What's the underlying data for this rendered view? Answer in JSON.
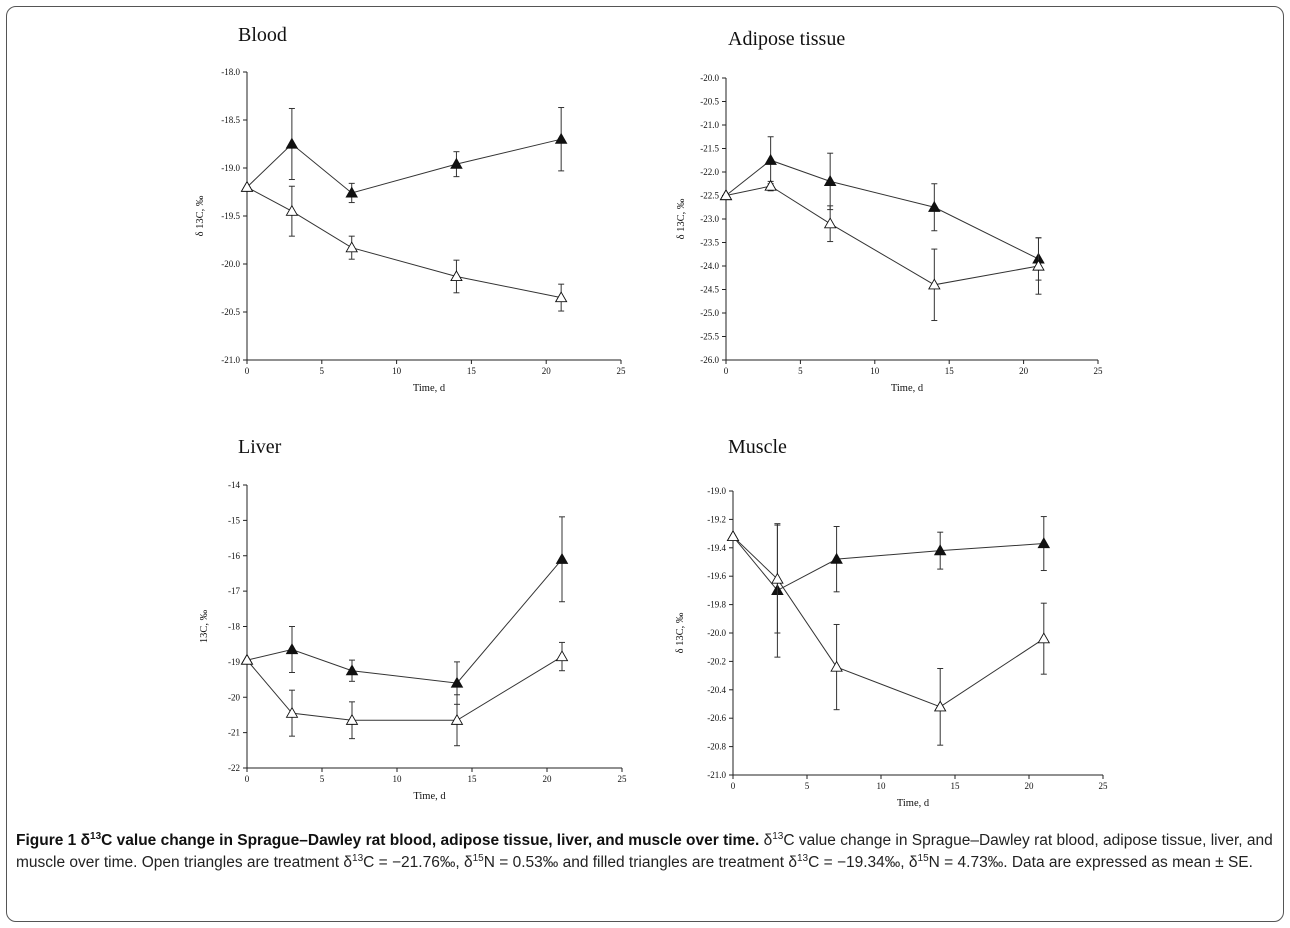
{
  "caption": {
    "label": "Figure 1",
    "title": "δ13C value change in Sprague–Dawley rat blood, adipose tissue, liver, and muscle over time.",
    "body": "δ13C value change in Sprague–Dawley rat blood, adipose tissue, liver, and muscle over time. Open triangles are treatment δ13C = −21.76‰, δ15N = 0.53‰ and filled triangles are treatment δ13C = −19.34‰, δ15N = 4.73‰. Data are expressed as mean ± SE."
  },
  "chart_data": [
    {
      "type": "line",
      "title": "Blood",
      "xlabel": "Time, d",
      "ylabel": "δ 13C, ‰",
      "xlim": [
        0,
        25
      ],
      "ylim": [
        -21.0,
        -18.0
      ],
      "xticks": [
        0,
        5,
        10,
        15,
        20,
        25
      ],
      "yticks": [
        -21.0,
        -20.5,
        -20.0,
        -19.5,
        -19.0,
        -18.5,
        -18.0
      ],
      "ytick_decimals": 1,
      "x": [
        0,
        3,
        7,
        14,
        21
      ],
      "series": [
        {
          "marker": "filled-triangle",
          "values": [
            -19.2,
            -18.75,
            -19.26,
            -18.96,
            -18.7
          ],
          "errors": [
            0.0,
            0.37,
            0.1,
            0.13,
            0.33
          ]
        },
        {
          "marker": "open-triangle",
          "values": [
            -19.2,
            -19.45,
            -19.83,
            -20.13,
            -20.35
          ],
          "errors": [
            0.0,
            0.26,
            0.12,
            0.17,
            0.14
          ]
        }
      ]
    },
    {
      "type": "line",
      "title": "Adipose tissue",
      "xlabel": "Time, d",
      "ylabel": "δ 13C, ‰",
      "xlim": [
        0,
        25
      ],
      "ylim": [
        -26.0,
        -20.0
      ],
      "xticks": [
        0,
        5,
        10,
        15,
        20,
        25
      ],
      "yticks": [
        -26.0,
        -25.5,
        -25.0,
        -24.5,
        -24.0,
        -23.5,
        -23.0,
        -22.5,
        -22.0,
        -21.5,
        -21.0,
        -20.5,
        -20.0
      ],
      "ytick_decimals": 1,
      "x": [
        0,
        3,
        7,
        14,
        21
      ],
      "series": [
        {
          "marker": "filled-triangle",
          "values": [
            -22.5,
            -21.75,
            -22.2,
            -22.75,
            -23.85
          ],
          "errors": [
            0.0,
            0.5,
            0.6,
            0.5,
            0.45
          ]
        },
        {
          "marker": "open-triangle",
          "values": [
            -22.5,
            -22.3,
            -23.1,
            -24.4,
            -24.0
          ],
          "errors": [
            0.0,
            0.1,
            0.38,
            0.76,
            0.6
          ]
        }
      ]
    },
    {
      "type": "line",
      "title": "Liver",
      "xlabel": "Time, d",
      "ylabel": "13C, ‰",
      "xlim": [
        0,
        25
      ],
      "ylim": [
        -22,
        -14
      ],
      "xticks": [
        0,
        5,
        10,
        15,
        20,
        25
      ],
      "yticks": [
        -22,
        -21,
        -20,
        -19,
        -18,
        -17,
        -16,
        -15,
        -14
      ],
      "ytick_decimals": 0,
      "x": [
        0,
        3,
        7,
        14,
        21
      ],
      "series": [
        {
          "marker": "filled-triangle",
          "values": [
            -18.95,
            -18.65,
            -19.25,
            -19.6,
            -16.1
          ],
          "errors": [
            0.0,
            0.65,
            0.3,
            0.6,
            1.2
          ]
        },
        {
          "marker": "open-triangle",
          "values": [
            -18.95,
            -20.45,
            -20.65,
            -20.65,
            -18.85
          ],
          "errors": [
            0.0,
            0.65,
            0.52,
            0.72,
            0.4
          ]
        }
      ]
    },
    {
      "type": "line",
      "title": "Muscle",
      "xlabel": "Time, d",
      "ylabel": "δ 13C, ‰",
      "xlim": [
        0,
        25
      ],
      "ylim": [
        -21.0,
        -19.0
      ],
      "xticks": [
        0,
        5,
        10,
        15,
        20,
        25
      ],
      "yticks": [
        -21.0,
        -20.8,
        -20.6,
        -20.4,
        -20.2,
        -20.0,
        -19.8,
        -19.6,
        -19.4,
        -19.2,
        -19.0
      ],
      "ytick_decimals": 1,
      "x": [
        0,
        3,
        7,
        14,
        21
      ],
      "series": [
        {
          "marker": "filled-triangle",
          "values": [
            -19.32,
            -19.7,
            -19.48,
            -19.42,
            -19.37
          ],
          "errors": [
            0.0,
            0.47,
            0.23,
            0.13,
            0.19
          ]
        },
        {
          "marker": "open-triangle",
          "values": [
            -19.32,
            -19.62,
            -20.24,
            -20.52,
            -20.04
          ],
          "errors": [
            0.0,
            0.38,
            0.3,
            0.27,
            0.25
          ]
        }
      ]
    }
  ]
}
